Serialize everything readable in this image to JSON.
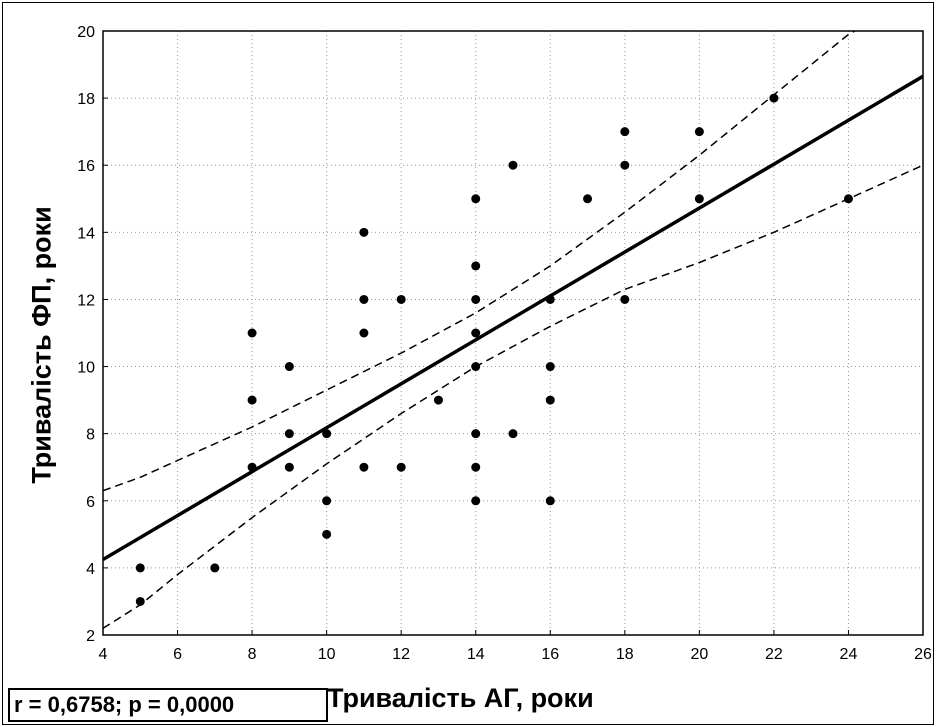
{
  "chart_data": {
    "type": "scatter",
    "title": "",
    "xlabel": "Тривалість АГ, роки",
    "ylabel": "Тривалість ФП, роки",
    "xlim": [
      4,
      26
    ],
    "ylim": [
      2,
      20
    ],
    "xticks": [
      4,
      6,
      8,
      10,
      12,
      14,
      16,
      18,
      20,
      22,
      24,
      26
    ],
    "yticks": [
      2,
      4,
      6,
      8,
      10,
      12,
      14,
      16,
      18,
      20
    ],
    "grid": true,
    "annotation": "r = 0,6758; p = 0,0000",
    "points": [
      [
        5,
        4
      ],
      [
        5,
        3
      ],
      [
        7,
        4
      ],
      [
        8,
        11
      ],
      [
        8,
        9
      ],
      [
        8,
        7
      ],
      [
        9,
        10
      ],
      [
        9,
        8
      ],
      [
        9,
        7
      ],
      [
        10,
        8
      ],
      [
        10,
        6
      ],
      [
        10,
        5
      ],
      [
        11,
        14
      ],
      [
        11,
        12
      ],
      [
        11,
        11
      ],
      [
        11,
        7
      ],
      [
        12,
        12
      ],
      [
        12,
        7
      ],
      [
        13,
        9
      ],
      [
        14,
        15
      ],
      [
        14,
        13
      ],
      [
        14,
        12
      ],
      [
        14,
        11
      ],
      [
        14,
        10
      ],
      [
        14,
        8
      ],
      [
        14,
        7
      ],
      [
        14,
        6
      ],
      [
        15,
        16
      ],
      [
        15,
        8
      ],
      [
        16,
        12
      ],
      [
        16,
        10
      ],
      [
        16,
        9
      ],
      [
        16,
        6
      ],
      [
        17,
        15
      ],
      [
        18,
        17
      ],
      [
        18,
        16
      ],
      [
        18,
        12
      ],
      [
        20,
        17
      ],
      [
        20,
        15
      ],
      [
        22,
        18
      ],
      [
        24,
        15
      ]
    ],
    "regression_line": [
      [
        4,
        4.25
      ],
      [
        26,
        18.65
      ]
    ],
    "confidence_upper": [
      [
        4,
        6.3
      ],
      [
        5,
        6.7
      ],
      [
        6,
        7.2
      ],
      [
        8,
        8.2
      ],
      [
        10,
        9.3
      ],
      [
        12,
        10.4
      ],
      [
        14,
        11.6
      ],
      [
        16,
        13.0
      ],
      [
        18,
        14.6
      ],
      [
        20,
        16.3
      ],
      [
        22,
        18.1
      ],
      [
        24,
        19.9
      ],
      [
        24.5,
        20.2
      ]
    ],
    "confidence_lower": [
      [
        4,
        2.2
      ],
      [
        5,
        2.9
      ],
      [
        6,
        3.8
      ],
      [
        8,
        5.5
      ],
      [
        10,
        7.1
      ],
      [
        12,
        8.6
      ],
      [
        14,
        10.0
      ],
      [
        16,
        11.2
      ],
      [
        18,
        12.3
      ],
      [
        20,
        13.1
      ],
      [
        22,
        14.0
      ],
      [
        24,
        15.0
      ],
      [
        26,
        16.0
      ]
    ]
  }
}
